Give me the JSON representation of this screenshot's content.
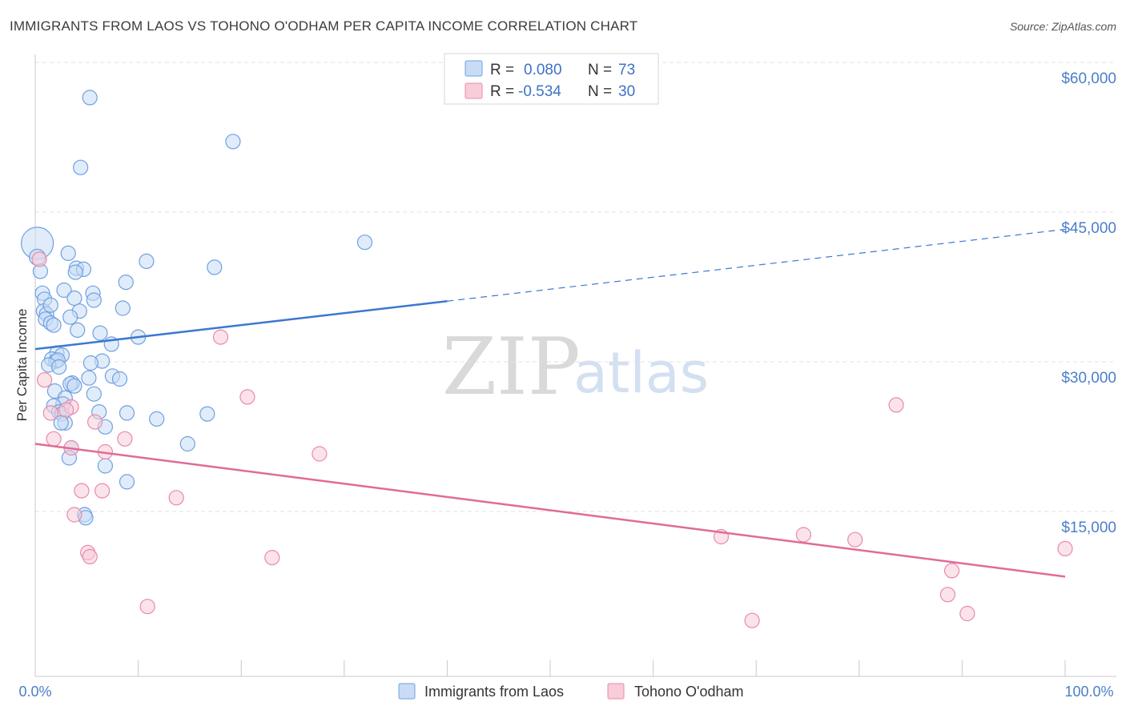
{
  "title": "IMMIGRANTS FROM LAOS VS TOHONO O'ODHAM PER CAPITA INCOME CORRELATION CHART",
  "source": "Source: ZipAtlas.com",
  "watermark": {
    "zip": "ZIP",
    "atlas": "atlas"
  },
  "legend": {
    "r_label": "R =",
    "n_label": "N =",
    "rows": [
      {
        "name": "Immigrants from Laos",
        "r": "0.080",
        "n": "73",
        "color": "#6fa0e0",
        "fill": "#c9dcf5"
      },
      {
        "name": "Tohono O'odham",
        "r": "-0.534",
        "n": "30",
        "color": "#e98aa9",
        "fill": "#f8ccd9"
      }
    ]
  },
  "chart_data": {
    "type": "scatter",
    "title": "IMMIGRANTS FROM LAOS VS TOHONO O'ODHAM PER CAPITA INCOME CORRELATION CHART",
    "xlabel": "",
    "ylabel": "Per Capita Income",
    "xlim": [
      0,
      100
    ],
    "ylim": [
      0,
      63000
    ],
    "x_tick_labels": [
      "0.0%",
      "100.0%"
    ],
    "y_ticks": [
      15000,
      30000,
      45000,
      60000
    ],
    "y_tick_labels": [
      "$15,000",
      "$30,000",
      "$45,000",
      "$60,000"
    ],
    "grid": true,
    "series": [
      {
        "name": "Immigrants from Laos",
        "color": "#6fa0e0",
        "fill": "#c9dcf5",
        "trend": {
          "x0": 0,
          "y0": 32800,
          "x1": 40,
          "y1": 37600,
          "x_dash_end": 100,
          "y_dash_end": 44800
        },
        "points": [
          [
            0.2,
            43400,
            20
          ],
          [
            0.2,
            42000,
            10
          ],
          [
            0.5,
            40600,
            9
          ],
          [
            0.7,
            38400,
            9
          ],
          [
            0.9,
            37800,
            9
          ],
          [
            0.8,
            36600,
            9
          ],
          [
            1.1,
            36300,
            9
          ],
          [
            1.5,
            37200,
            9
          ],
          [
            1.0,
            35800,
            9
          ],
          [
            1.5,
            35400,
            9
          ],
          [
            1.8,
            35200,
            9
          ],
          [
            5.3,
            58000,
            9
          ],
          [
            4.4,
            51000,
            9
          ],
          [
            19.2,
            53600,
            9
          ],
          [
            32.0,
            43500,
            9
          ],
          [
            3.2,
            42400,
            9
          ],
          [
            10.8,
            41600,
            9
          ],
          [
            17.4,
            41000,
            9
          ],
          [
            4.0,
            40900,
            9
          ],
          [
            4.7,
            40800,
            9
          ],
          [
            3.9,
            40500,
            9
          ],
          [
            8.8,
            39500,
            9
          ],
          [
            2.8,
            38700,
            9
          ],
          [
            5.6,
            38400,
            9
          ],
          [
            3.8,
            37900,
            9
          ],
          [
            5.7,
            37700,
            9
          ],
          [
            8.5,
            36900,
            9
          ],
          [
            4.3,
            36600,
            9
          ],
          [
            3.4,
            36000,
            9
          ],
          [
            4.1,
            34700,
            9
          ],
          [
            6.3,
            34400,
            9
          ],
          [
            10.0,
            34000,
            9
          ],
          [
            7.4,
            33300,
            9
          ],
          [
            2.1,
            32400,
            9
          ],
          [
            2.6,
            32200,
            9
          ],
          [
            1.6,
            31800,
            9
          ],
          [
            2.0,
            31600,
            9
          ],
          [
            2.2,
            31700,
            9
          ],
          [
            6.5,
            31600,
            9
          ],
          [
            5.4,
            31400,
            9
          ],
          [
            1.3,
            31200,
            9
          ],
          [
            2.3,
            31000,
            9
          ],
          [
            7.5,
            30100,
            9
          ],
          [
            5.2,
            29900,
            9
          ],
          [
            8.2,
            29800,
            9
          ],
          [
            3.6,
            29400,
            9
          ],
          [
            3.4,
            29300,
            9
          ],
          [
            3.8,
            29100,
            9
          ],
          [
            1.9,
            28600,
            9
          ],
          [
            2.9,
            27900,
            9
          ],
          [
            5.7,
            28300,
            9
          ],
          [
            2.7,
            27300,
            9
          ],
          [
            1.8,
            27100,
            9
          ],
          [
            6.2,
            26500,
            9
          ],
          [
            2.3,
            26500,
            9
          ],
          [
            8.9,
            26400,
            9
          ],
          [
            16.7,
            26300,
            9
          ],
          [
            2.6,
            26300,
            9
          ],
          [
            11.8,
            25800,
            9
          ],
          [
            2.9,
            25400,
            9
          ],
          [
            2.5,
            25400,
            9
          ],
          [
            6.8,
            25000,
            9
          ],
          [
            14.8,
            23300,
            9
          ],
          [
            3.5,
            22900,
            9
          ],
          [
            3.3,
            21900,
            9
          ],
          [
            6.8,
            21100,
            9
          ],
          [
            8.9,
            19500,
            9
          ],
          [
            4.8,
            16200,
            9
          ],
          [
            4.9,
            15900,
            9
          ]
        ]
      },
      {
        "name": "Tohono O'odham",
        "color": "#e98aa9",
        "fill": "#f8ccd9",
        "trend": {
          "x0": 0,
          "y0": 23300,
          "x1": 100,
          "y1": 10000
        },
        "points": [
          [
            0.4,
            41800,
            9
          ],
          [
            18.0,
            34000,
            9
          ],
          [
            0.9,
            29700,
            9
          ],
          [
            20.6,
            28000,
            9
          ],
          [
            83.6,
            27200,
            9
          ],
          [
            3.5,
            27000,
            9
          ],
          [
            3.0,
            26700,
            9
          ],
          [
            1.5,
            26400,
            9
          ],
          [
            5.8,
            25500,
            9
          ],
          [
            1.8,
            23800,
            9
          ],
          [
            8.7,
            23800,
            9
          ],
          [
            3.5,
            22900,
            9
          ],
          [
            6.8,
            22500,
            9
          ],
          [
            27.6,
            22300,
            9
          ],
          [
            4.5,
            18600,
            9
          ],
          [
            6.5,
            18600,
            9
          ],
          [
            13.7,
            17900,
            9
          ],
          [
            3.8,
            16200,
            9
          ],
          [
            66.6,
            14000,
            9
          ],
          [
            74.6,
            14200,
            9
          ],
          [
            79.6,
            13700,
            9
          ],
          [
            100.0,
            12800,
            9
          ],
          [
            5.1,
            12400,
            9
          ],
          [
            5.3,
            12000,
            9
          ],
          [
            23.0,
            11900,
            9
          ],
          [
            89.0,
            10600,
            9
          ],
          [
            88.6,
            8200,
            9
          ],
          [
            10.9,
            7000,
            9
          ],
          [
            90.5,
            6300,
            9
          ],
          [
            69.6,
            5600,
            9
          ]
        ]
      }
    ]
  }
}
